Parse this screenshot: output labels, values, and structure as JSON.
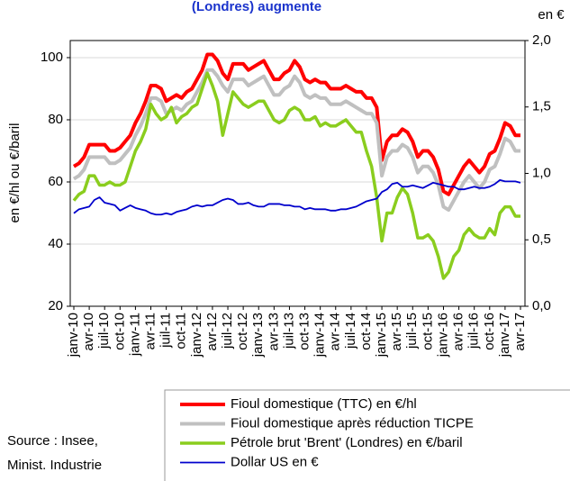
{
  "chart_data": {
    "type": "line",
    "title": "(Londres) augmente",
    "y_label": "en €/hl ou €/baril",
    "y2_label": "en €",
    "source": [
      "Source : Insee,",
      "Minist. Industrie"
    ],
    "categories": [
      "janv-10",
      null,
      null,
      "avr-10",
      null,
      null,
      "juil-10",
      null,
      null,
      "oct-10",
      null,
      null,
      "janv-11",
      null,
      null,
      "avr-11",
      null,
      null,
      "juil-11",
      null,
      null,
      "oct-11",
      null,
      null,
      "janv-12",
      null,
      null,
      "avr-12",
      null,
      null,
      "juil-12",
      null,
      null,
      "oct-12",
      null,
      null,
      "janv-13",
      null,
      null,
      "avr-13",
      null,
      null,
      "juil-13",
      null,
      null,
      "oct-13",
      null,
      null,
      "janv-14",
      null,
      null,
      "avr-14",
      null,
      null,
      "juil-14",
      null,
      null,
      "oct-14",
      null,
      null,
      "janv-15",
      null,
      null,
      "avr-15",
      null,
      null,
      "juil-15",
      null,
      null,
      "oct-15",
      null,
      null,
      "janv-16",
      null,
      null,
      "avr-16",
      null,
      null,
      "juil-16",
      null,
      null,
      "oct-16",
      null,
      null,
      "janv-17",
      null,
      null,
      "avr-17"
    ],
    "series": [
      {
        "name": "Fioul domestique (TTC) en €/hl",
        "color": "#ff0000",
        "width": 4,
        "values": [
          65,
          66,
          68,
          72,
          72,
          72,
          72,
          70,
          70,
          71,
          73,
          75,
          79,
          82,
          86,
          91,
          91,
          90,
          86,
          87,
          88,
          87,
          89,
          90,
          93,
          96,
          101,
          101,
          99,
          95,
          93,
          98,
          98,
          98,
          96,
          97,
          98,
          99,
          96,
          93,
          93,
          95,
          96,
          99,
          97,
          93,
          92,
          93,
          92,
          92,
          90,
          90,
          90,
          91,
          90,
          89,
          89,
          87,
          87,
          84,
          67,
          73,
          75,
          75,
          77,
          76,
          73,
          68,
          70,
          70,
          68,
          64,
          57,
          56,
          59,
          62,
          65,
          67,
          65,
          63,
          65,
          69,
          70,
          74,
          79,
          78,
          75,
          75
        ]
      },
      {
        "name": "Fioul domestique après réduction TICPE",
        "color": "#c0c0c0",
        "width": 4,
        "values": [
          61,
          62,
          64,
          68,
          68,
          68,
          68,
          66,
          66,
          67,
          69,
          71,
          75,
          78,
          82,
          87,
          87,
          86,
          82,
          83,
          84,
          83,
          85,
          86,
          89,
          92,
          96,
          96,
          94,
          91,
          89,
          93,
          93,
          93,
          91,
          92,
          93,
          94,
          91,
          88,
          88,
          90,
          91,
          94,
          92,
          88,
          87,
          88,
          87,
          87,
          85,
          85,
          85,
          86,
          85,
          84,
          83,
          82,
          82,
          79,
          62,
          68,
          70,
          70,
          72,
          71,
          68,
          63,
          65,
          65,
          63,
          59,
          52,
          51,
          54,
          57,
          60,
          62,
          60,
          58,
          60,
          64,
          65,
          69,
          74,
          73,
          70,
          70
        ]
      },
      {
        "name": "Pétrole brut 'Brent' (Londres) en €/baril",
        "color": "#8acd1e",
        "width": 3.5,
        "values": [
          54,
          56,
          57,
          62,
          62,
          59,
          59,
          60,
          59,
          59,
          60,
          65,
          70,
          73,
          77,
          85,
          82,
          80,
          81,
          84,
          79,
          81,
          82,
          84,
          85,
          90,
          95,
          91,
          86,
          75,
          82,
          89,
          87,
          85,
          84,
          85,
          86,
          86,
          83,
          80,
          79,
          80,
          83,
          84,
          83,
          80,
          80,
          81,
          78,
          79,
          78,
          78,
          79,
          80,
          78,
          76,
          76,
          70,
          65,
          55,
          41,
          50,
          50,
          55,
          58,
          56,
          50,
          42,
          42,
          43,
          41,
          36,
          29,
          31,
          36,
          38,
          43,
          45,
          43,
          42,
          42,
          45,
          43,
          50,
          52,
          52,
          49,
          49
        ]
      },
      {
        "name": "Dollar US en €",
        "color": "#0000cc",
        "width": 1.8,
        "axis": "y2",
        "values": [
          0.7,
          0.73,
          0.74,
          0.75,
          0.8,
          0.82,
          0.78,
          0.77,
          0.76,
          0.72,
          0.74,
          0.76,
          0.74,
          0.73,
          0.72,
          0.7,
          0.69,
          0.69,
          0.7,
          0.69,
          0.71,
          0.72,
          0.73,
          0.75,
          0.76,
          0.75,
          0.76,
          0.76,
          0.78,
          0.8,
          0.81,
          0.8,
          0.77,
          0.77,
          0.78,
          0.76,
          0.75,
          0.75,
          0.77,
          0.77,
          0.77,
          0.76,
          0.76,
          0.75,
          0.75,
          0.73,
          0.74,
          0.73,
          0.73,
          0.73,
          0.72,
          0.72,
          0.73,
          0.73,
          0.74,
          0.75,
          0.77,
          0.79,
          0.8,
          0.81,
          0.86,
          0.88,
          0.92,
          0.93,
          0.9,
          0.9,
          0.91,
          0.9,
          0.89,
          0.91,
          0.93,
          0.92,
          0.91,
          0.9,
          0.9,
          0.88,
          0.88,
          0.89,
          0.9,
          0.89,
          0.89,
          0.9,
          0.92,
          0.95,
          0.94,
          0.94,
          0.94,
          0.93
        ]
      }
    ],
    "ylim": [
      20,
      105.5
    ],
    "yticks": [
      20,
      40,
      60,
      80,
      100
    ],
    "y2lim": [
      0,
      2
    ],
    "y2ticks": [
      {
        "value": 0,
        "label": "0,0"
      },
      {
        "value": 0.5,
        "label": "0,5"
      },
      {
        "value": 1,
        "label": "1,0"
      },
      {
        "value": 1.5,
        "label": "1,5"
      },
      {
        "value": 2,
        "label": "2,0"
      }
    ],
    "grid": true
  }
}
